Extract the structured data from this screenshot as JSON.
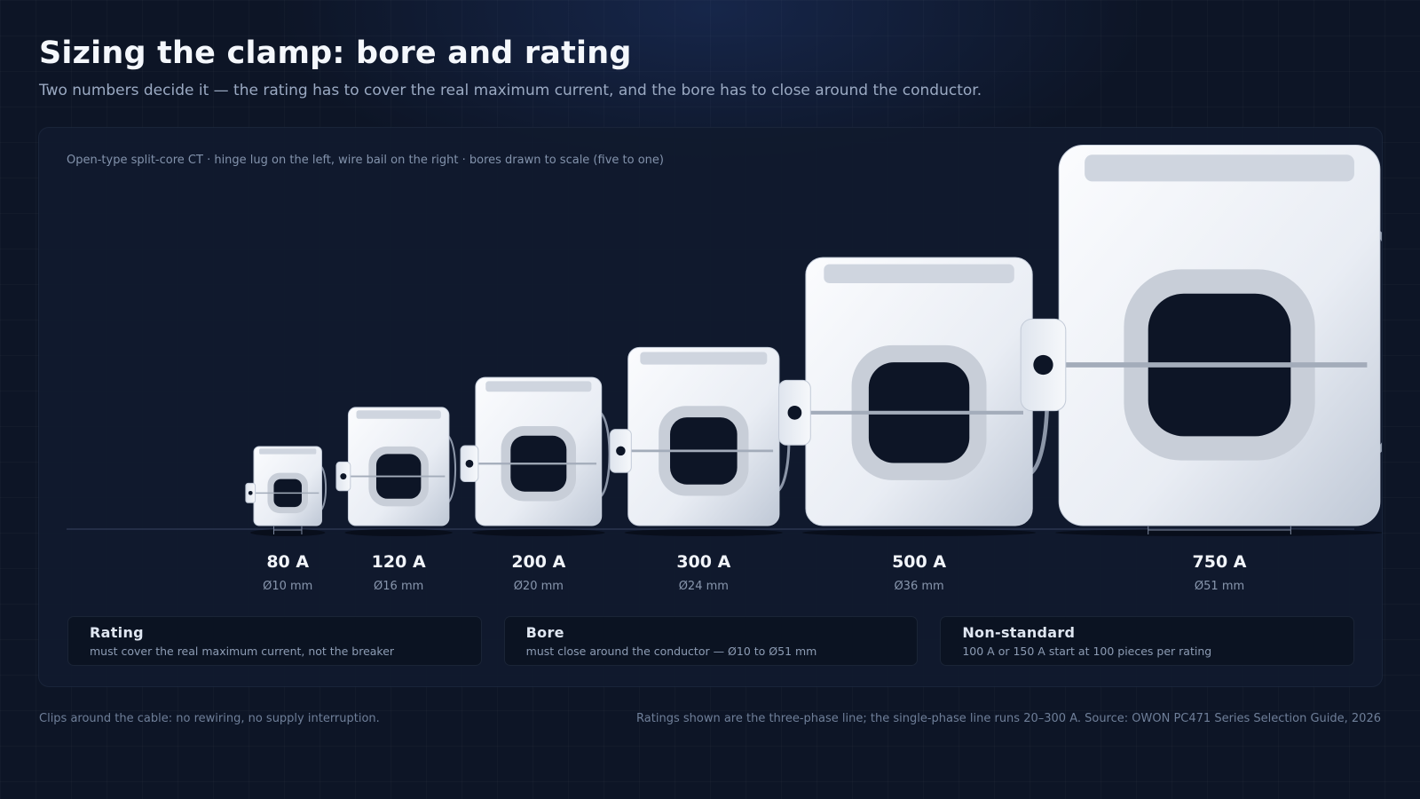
{
  "header": {
    "title": "Sizing the clamp: bore and rating",
    "subtitle": "Two numbers decide it — the rating has to cover the real maximum current, and the bore has to close around the conductor."
  },
  "panel": {
    "caption": "Open-type split-core CT · hinge lug on the left, wire bail on the right · bores drawn to scale (five to one)"
  },
  "clamps": [
    {
      "rating": "80 A",
      "bore": "Ø10 mm",
      "bore_mm": 10
    },
    {
      "rating": "120 A",
      "bore": "Ø16 mm",
      "bore_mm": 16
    },
    {
      "rating": "200 A",
      "bore": "Ø20 mm",
      "bore_mm": 20
    },
    {
      "rating": "300 A",
      "bore": "Ø24 mm",
      "bore_mm": 24
    },
    {
      "rating": "500 A",
      "bore": "Ø36 mm",
      "bore_mm": 36
    },
    {
      "rating": "750 A",
      "bore": "Ø51 mm",
      "bore_mm": 51
    }
  ],
  "cards": [
    {
      "title": "Rating",
      "text": "must cover the real maximum current, not the breaker"
    },
    {
      "title": "Bore",
      "text": "must close around the conductor — Ø10 to Ø51 mm"
    },
    {
      "title": "Non-standard",
      "text": "100 A or 150 A start at 100 pieces per rating"
    }
  ],
  "footer": {
    "left": "Clips around the cable: no rewiring, no supply interruption.",
    "right": "Ratings shown are the three-phase line; the single-phase line runs 20–300 A. Source: OWON PC471 Series Selection Guide, 2026"
  },
  "colors": {
    "background": "#0d1526",
    "panel": "#101a2e",
    "clamp_body": "#e9edf4",
    "bore_hole": "#0d1526"
  }
}
